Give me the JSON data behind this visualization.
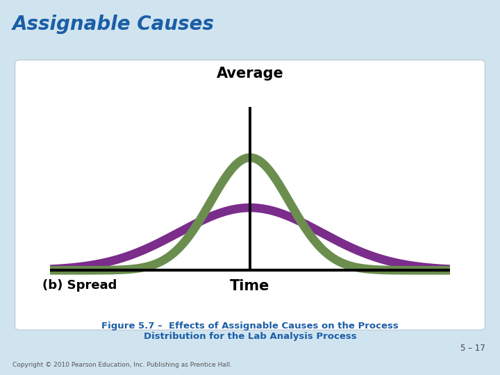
{
  "title": "Assignable Causes",
  "title_color": "#1B5EA6",
  "title_fontsize": 20,
  "title_style": "italic",
  "title_weight": "bold",
  "bg_outer": "#D0E4F0",
  "bg_inner": "#FFFFFF",
  "bg_panel": "#EEF4F8",
  "average_label": "Average",
  "average_fontsize": 15,
  "time_label": "Time",
  "time_fontsize": 15,
  "spread_label": "(b) Spread",
  "spread_fontsize": 13,
  "figure_caption_line1": "Figure 5.7 –  Effects of Assignable Causes on the Process",
  "figure_caption_line2": "Distribution for the Lab Analysis Process",
  "caption_color": "#1B5EA6",
  "caption_fontsize": 9.5,
  "page_number": "5 – 17",
  "copyright": "Copyright © 2010 Pearson Education, Inc. Publishing as Prentice Hall.",
  "curve_narrow_color": "#6B8E4E",
  "curve_wide_color": "#7B2D8B",
  "curve_linewidth": 9,
  "narrow_sigma": 0.75,
  "wide_sigma": 1.35,
  "mean": 0.0,
  "x_range": [
    -3.8,
    3.8
  ],
  "baseline_y": 0.0
}
